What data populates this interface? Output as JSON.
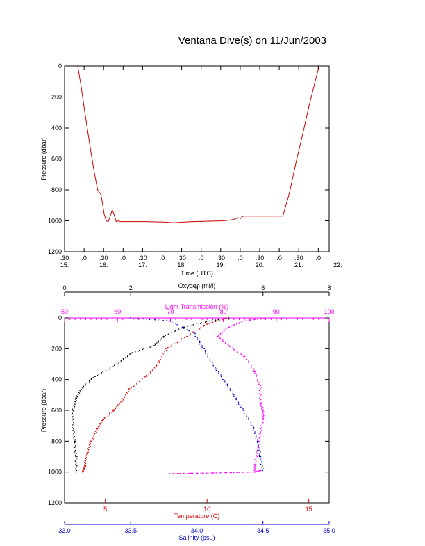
{
  "title": "Ventana Dive(s) on 11/Jun/2003",
  "chart_data": [
    {
      "type": "line",
      "title": "Ventana Dive(s) on 11/Jun/2003",
      "xlabel": "Time (UTC)",
      "ylabel": "Pressure (dbar)",
      "ylim": [
        1200,
        0
      ],
      "y_ticks": [
        "0",
        "200",
        "400",
        "600",
        "800",
        "1000",
        "1200"
      ],
      "x_ticks_minor": [
        ":30",
        ":0",
        ":30",
        ":0",
        ":30",
        ":0",
        ":30",
        ":0",
        ":30",
        ":0",
        ":30",
        ":0",
        ":30",
        ":0"
      ],
      "x_ticks_hour": [
        "15:",
        "16:",
        "17:",
        "18:",
        "19:",
        "20:",
        "21:",
        "22:"
      ],
      "line_color": "#cc0000",
      "series": [
        {
          "x": [
            "15:50",
            "15:55",
            "16:00",
            "16:05",
            "16:10",
            "16:15",
            "16:20",
            "16:25",
            "16:30",
            "16:33",
            "16:36",
            "16:39",
            "16:42",
            "16:45",
            "16:48",
            "16:51",
            "16:55",
            "17:00",
            "17:30",
            "18:00",
            "18:15",
            "18:30",
            "18:45",
            "19:00",
            "19:30",
            "19:45",
            "19:52",
            "19:56",
            "20:00",
            "20:30",
            "21:00",
            "21:10",
            "21:20",
            "21:30",
            "21:40",
            "21:50",
            "21:55"
          ],
          "y": [
            0,
            130,
            280,
            420,
            560,
            690,
            800,
            830,
            960,
            1000,
            1005,
            970,
            930,
            960,
            1005,
            1000,
            1005,
            1005,
            1005,
            1008,
            1012,
            1008,
            1005,
            1003,
            1000,
            992,
            980,
            985,
            970,
            970,
            970,
            820,
            620,
            440,
            250,
            80,
            0
          ]
        }
      ]
    },
    {
      "type": "scatter",
      "ylabel": "Pressure (dbar)",
      "ylim": [
        1200,
        0
      ],
      "y_ticks": [
        "0",
        "200",
        "400",
        "600",
        "800",
        "1000",
        "1200"
      ],
      "axes": {
        "oxygen": {
          "label": "Oxygen (ml/l)",
          "range": [
            0,
            8
          ],
          "ticks": [
            "0",
            "2",
            "4",
            "6",
            "8"
          ],
          "color": "#000000"
        },
        "light": {
          "label": "Light Transmission (%)",
          "range": [
            50,
            100
          ],
          "ticks": [
            "50",
            "60",
            "70",
            "80",
            "90",
            "100"
          ],
          "color": "#ff00ff"
        },
        "temperature": {
          "label": "Temperature (C)",
          "range": [
            3,
            16
          ],
          "ticks": [
            "5",
            "10",
            "15"
          ],
          "color": "#dd0000"
        },
        "salinity": {
          "label": "Salinity (psu)",
          "range": [
            33.0,
            35.0
          ],
          "ticks": [
            "33.0",
            "33.5",
            "34.0",
            "34.5",
            "35.0"
          ],
          "color": "#0000cc"
        }
      },
      "series": [
        {
          "name": "Oxygen (ml/l)",
          "axis": "oxygen",
          "color": "#000000",
          "x": [
            5.0,
            4.4,
            3.6,
            3.0,
            2.7,
            2.0,
            1.6,
            0.9,
            0.55,
            0.35,
            0.25,
            0.25,
            0.3,
            0.35,
            0.35
          ],
          "y": [
            0,
            20,
            60,
            120,
            180,
            230,
            300,
            380,
            450,
            520,
            600,
            700,
            800,
            900,
            1000
          ]
        },
        {
          "name": "Light Transmission (%)",
          "axis": "light",
          "color": "#ff00ff",
          "x": [
            88,
            84,
            81,
            79,
            81,
            84,
            86,
            87,
            87,
            87.5,
            87.5,
            87,
            86.5,
            86,
            86
          ],
          "y": [
            0,
            20,
            60,
            120,
            180,
            250,
            350,
            450,
            550,
            600,
            650,
            750,
            850,
            950,
            1000
          ]
        },
        {
          "name": "Temperature (C)",
          "axis": "temperature",
          "color": "#dd0000",
          "x": [
            11.0,
            10.0,
            9.0,
            8.0,
            7.6,
            7.0,
            6.2,
            5.8,
            5.4,
            4.9,
            4.6,
            4.3,
            4.1,
            4.0,
            3.9
          ],
          "y": [
            0,
            40,
            120,
            200,
            300,
            380,
            460,
            540,
            600,
            660,
            720,
            800,
            880,
            960,
            1000
          ]
        },
        {
          "name": "Salinity (psu)",
          "axis": "salinity",
          "color": "#0000cc",
          "x": [
            33.5,
            33.8,
            33.98,
            34.05,
            34.12,
            34.2,
            34.28,
            34.35,
            34.42,
            34.46,
            34.48,
            34.5
          ],
          "y": [
            0,
            20,
            100,
            200,
            300,
            400,
            500,
            600,
            700,
            800,
            900,
            1000
          ]
        },
        {
          "name": "Light Transmission (%)",
          "axis": "light",
          "color": "#ff00ff",
          "x": [
            70,
            74,
            78,
            82,
            86,
            87
          ],
          "y": [
            1010,
            1008,
            1006,
            1003,
            1000,
            990
          ]
        }
      ]
    }
  ]
}
